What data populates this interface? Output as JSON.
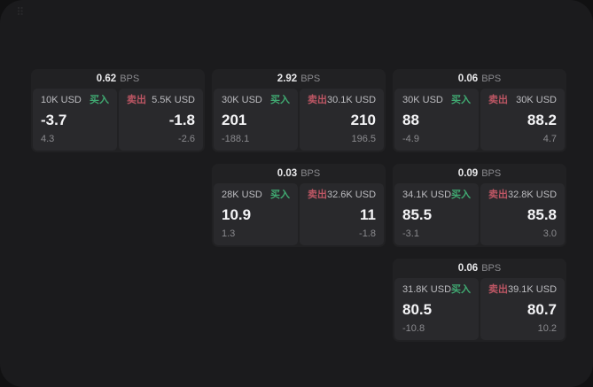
{
  "labels": {
    "buy": "买入",
    "sell": "卖出",
    "bps": "BPS"
  },
  "icons": {
    "grid_handle": "⠿"
  },
  "colors": {
    "page_bg": "#111112",
    "panel_bg": "#1b1b1d",
    "card_bg": "#212123",
    "cell_bg": "#29292c",
    "green": "#40aa72",
    "red": "#bd5664"
  },
  "cards": [
    {
      "bps": "0.62",
      "buy": {
        "amount": "10K USD",
        "value": "-3.7",
        "sub": "4.3"
      },
      "sell": {
        "amount": "5.5K USD",
        "value": "-1.8",
        "sub": "-2.6"
      }
    },
    {
      "bps": "2.92",
      "buy": {
        "amount": "30K USD",
        "value": "201",
        "sub": "-188.1"
      },
      "sell": {
        "amount": "30.1K USD",
        "value": "210",
        "sub": "196.5"
      }
    },
    {
      "bps": "0.06",
      "buy": {
        "amount": "30K USD",
        "value": "88",
        "sub": "-4.9"
      },
      "sell": {
        "amount": "30K USD",
        "value": "88.2",
        "sub": "4.7"
      }
    },
    {
      "bps": "0.03",
      "buy": {
        "amount": "28K USD",
        "value": "10.9",
        "sub": "1.3"
      },
      "sell": {
        "amount": "32.6K USD",
        "value": "11",
        "sub": "-1.8"
      }
    },
    {
      "bps": "0.09",
      "buy": {
        "amount": "34.1K USD",
        "value": "85.5",
        "sub": "-3.1"
      },
      "sell": {
        "amount": "32.8K USD",
        "value": "85.8",
        "sub": "3.0"
      }
    },
    {
      "bps": "0.06",
      "buy": {
        "amount": "31.8K USD",
        "value": "80.5",
        "sub": "-10.8"
      },
      "sell": {
        "amount": "39.1K USD",
        "value": "80.7",
        "sub": "10.2"
      }
    }
  ]
}
